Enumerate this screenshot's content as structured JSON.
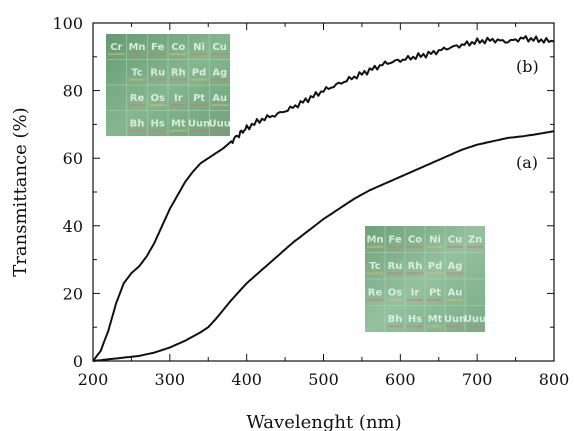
{
  "chart_data": {
    "type": "line",
    "title": "",
    "xlabel": "Wavelenght (nm)",
    "ylabel": "Transmittance (%)",
    "xlim": [
      200,
      800
    ],
    "ylim": [
      0,
      100
    ],
    "xticks": [
      200,
      300,
      400,
      500,
      600,
      700,
      800
    ],
    "yticks": [
      0,
      20,
      40,
      60,
      80,
      100
    ],
    "grid": false,
    "legend": "none",
    "series": [
      {
        "name": "(a)",
        "color": "#111111",
        "x": [
          200,
          220,
          240,
          260,
          280,
          300,
          320,
          340,
          350,
          360,
          380,
          400,
          420,
          440,
          460,
          480,
          500,
          520,
          540,
          560,
          580,
          600,
          620,
          640,
          660,
          680,
          700,
          720,
          740,
          760,
          780,
          800
        ],
        "y": [
          0,
          0.5,
          1,
          1.5,
          2.5,
          4,
          6,
          8.5,
          10,
          12.5,
          18,
          23,
          27,
          31,
          35,
          38.5,
          42,
          45,
          48,
          50.5,
          52.5,
          54.5,
          56.5,
          58.5,
          60.5,
          62.5,
          64,
          65,
          66,
          66.5,
          67.2,
          68
        ]
      },
      {
        "name": "(b)",
        "color": "#111111",
        "x": [
          200,
          210,
          220,
          230,
          240,
          250,
          260,
          270,
          280,
          290,
          300,
          310,
          320,
          330,
          340,
          350,
          360,
          370,
          380,
          390,
          400,
          420,
          440,
          460,
          480,
          500,
          520,
          540,
          560,
          580,
          600,
          620,
          640,
          660,
          680,
          700,
          720,
          740,
          760,
          780,
          800
        ],
        "y": [
          0,
          3,
          9,
          17,
          23,
          26,
          28,
          31,
          35,
          40,
          45,
          49,
          53,
          56,
          58.5,
          60,
          61.5,
          63,
          65,
          67,
          69,
          71.5,
          73,
          75,
          77.5,
          80,
          82,
          84,
          86,
          88,
          89,
          90,
          91,
          92.5,
          93.5,
          94.5,
          95,
          94.5,
          95.5,
          95,
          94.5
        ]
      }
    ],
    "annotations": [
      "(a)",
      "(b)"
    ],
    "insets": [
      {
        "description": "periodic-table-photo-inset",
        "cells": [
          "Cr",
          "Mn",
          "Fe",
          "Co",
          "Ni",
          "Cu",
          "Tc",
          "Ru",
          "Rh",
          "Pd",
          "Ag",
          "Re",
          "Os",
          "Ir",
          "Pt",
          "Au",
          "Bh",
          "Hs",
          "Mt",
          "Uun",
          "Uuu"
        ],
        "tint": "#5f9a6c"
      },
      {
        "description": "periodic-table-photo-inset",
        "cells": [
          "Mn",
          "Fe",
          "Co",
          "Ni",
          "Cu",
          "Zn",
          "Tc",
          "Ru",
          "Rh",
          "Pd",
          "Ag",
          "Re",
          "Os",
          "Ir",
          "Pt",
          "Au",
          "Bh",
          "Hs",
          "Mt",
          "Uun",
          "Uuu"
        ],
        "tint": "#6aa37a"
      }
    ]
  }
}
